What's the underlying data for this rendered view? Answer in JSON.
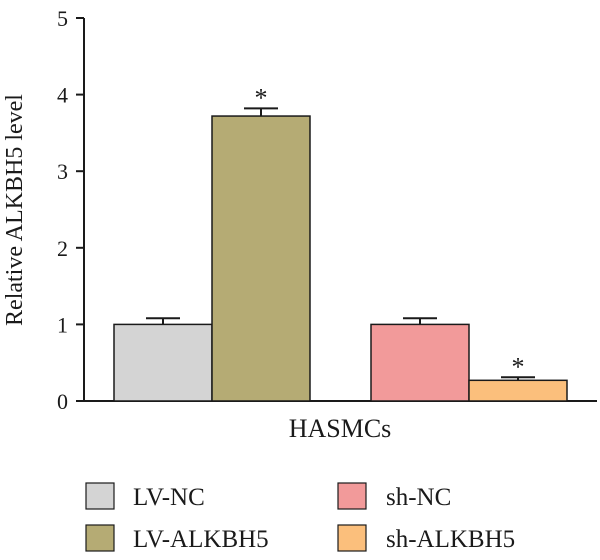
{
  "chart_data": {
    "type": "bar",
    "ylabel": "Relative ALKBH5 level",
    "xlabel": "",
    "category": "HASMCs",
    "ylim": [
      0,
      5
    ],
    "yticks": [
      "0",
      "1",
      "2",
      "3",
      "4",
      "5"
    ],
    "grid": false,
    "legend_position": "bottom",
    "series": [
      {
        "name": "LV-NC",
        "value": 1.0,
        "error": 0.08,
        "color": "#d4d4d4",
        "annotation": ""
      },
      {
        "name": "LV-ALKBH5",
        "value": 3.72,
        "error": 0.1,
        "color": "#b5ab74",
        "annotation": "*"
      },
      {
        "name": "sh-NC",
        "value": 1.0,
        "error": 0.08,
        "color": "#f29a9a",
        "annotation": ""
      },
      {
        "name": "sh-ALKBH5",
        "value": 0.27,
        "error": 0.04,
        "color": "#fbbf7c",
        "annotation": "*"
      }
    ]
  }
}
